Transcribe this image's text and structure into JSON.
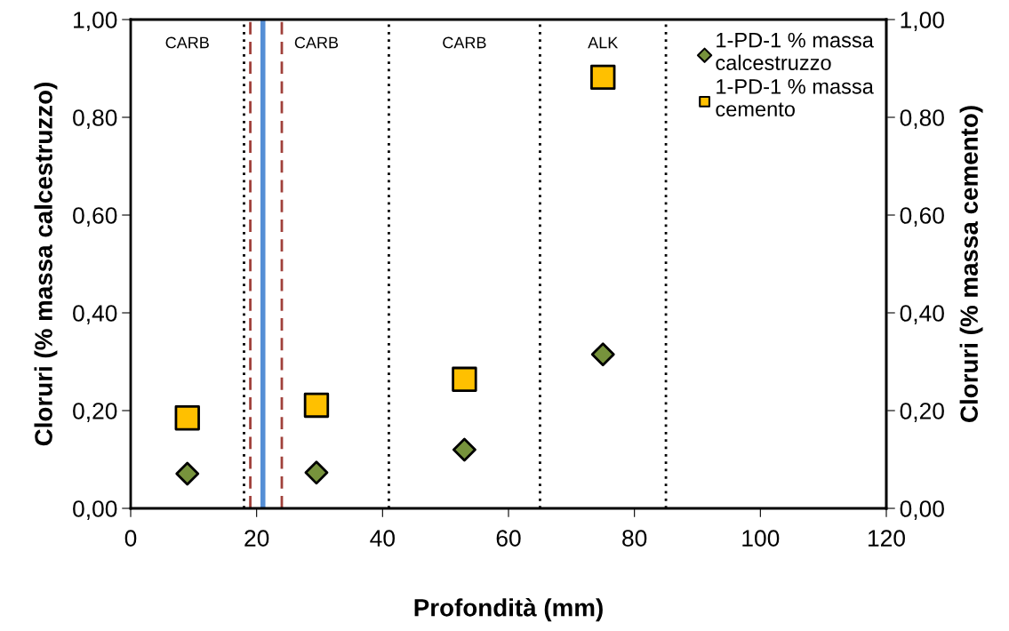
{
  "chart_data": {
    "type": "scatter",
    "xlabel": "Profondità (mm)",
    "ylabel": "Cloruri (% massa calcestruzzo)",
    "y2label": "Cloruri (% massa cemento)",
    "x": [
      9,
      29.5,
      53,
      75
    ],
    "series": [
      {
        "name": "1-PD-1 % massa calcestruzzo",
        "color": "#77933c",
        "marker": "diamond",
        "values": [
          0.071,
          0.073,
          0.12,
          0.315
        ]
      },
      {
        "name": "1-PD-1 % massa cemento",
        "color": "#ffc000",
        "marker": "square",
        "axis": "y2",
        "values": [
          0.185,
          0.211,
          0.264,
          0.882
        ]
      }
    ],
    "xlim": [
      0,
      120
    ],
    "xticks": [
      0,
      20,
      40,
      60,
      80,
      100,
      120
    ],
    "ylim": [
      0,
      1
    ],
    "yticks": [
      {
        "value": 0,
        "label": "0,00"
      },
      {
        "value": 0.2,
        "label": "0,20"
      },
      {
        "value": 0.4,
        "label": "0,40"
      },
      {
        "value": 0.6,
        "label": "0,60"
      },
      {
        "value": 0.8,
        "label": "0,80"
      },
      {
        "value": 1,
        "label": "1,00"
      }
    ],
    "y2lim": [
      0,
      1
    ],
    "y2ticks": [
      {
        "value": 0,
        "label": "0,00"
      },
      {
        "value": 0.2,
        "label": "0,20"
      },
      {
        "value": 0.4,
        "label": "0,40"
      },
      {
        "value": 0.6,
        "label": "0,60"
      },
      {
        "value": 0.8,
        "label": "0,80"
      },
      {
        "value": 1,
        "label": "1,00"
      }
    ],
    "ref_lines": [
      {
        "axis": "x",
        "value": 18,
        "color": "#000000",
        "line_style": "dotted"
      },
      {
        "axis": "x",
        "value": 19,
        "color": "#a0403a",
        "line_style": "dashed"
      },
      {
        "axis": "x",
        "value": 21,
        "color": "#558ed5",
        "line_style": "solid"
      },
      {
        "axis": "x",
        "value": 24,
        "color": "#a0403a",
        "line_style": "dashed"
      },
      {
        "axis": "x",
        "value": 41,
        "color": "#000000",
        "line_style": "dotted"
      },
      {
        "axis": "x",
        "value": 65,
        "color": "#000000",
        "line_style": "dotted"
      },
      {
        "axis": "x",
        "value": 85,
        "color": "#000000",
        "line_style": "dotted"
      }
    ],
    "annotations": [
      "CARB",
      "CARB",
      "CARB",
      "ALK"
    ],
    "grid": false,
    "legend": "top right"
  }
}
